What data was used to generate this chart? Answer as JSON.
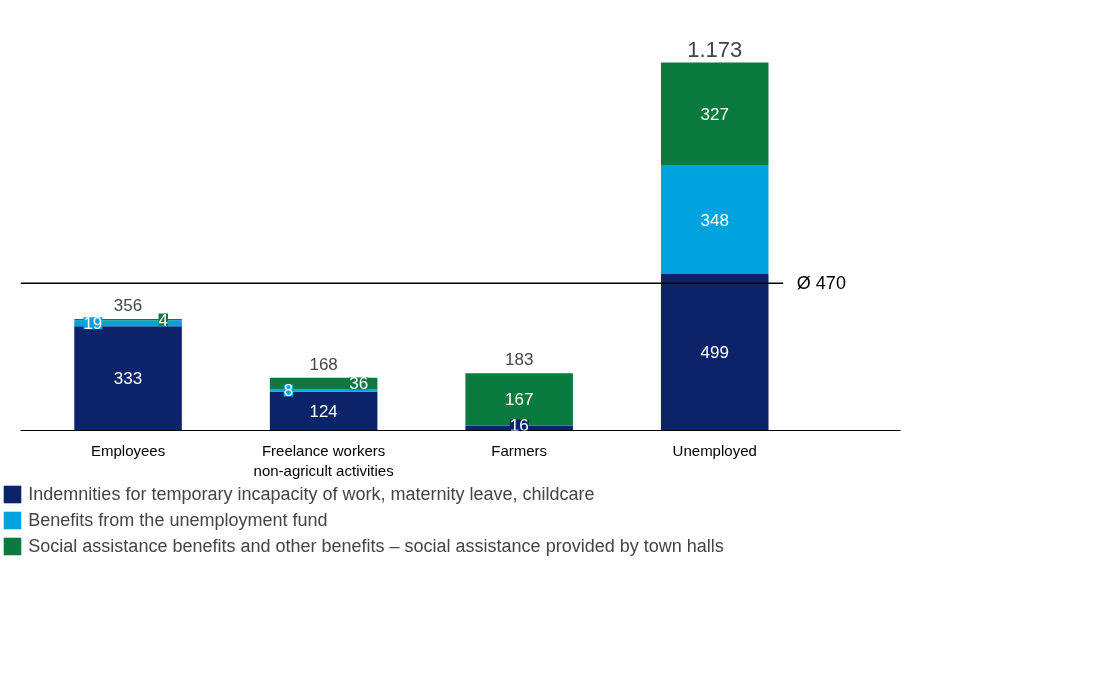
{
  "chart_data": {
    "type": "bar",
    "stacked": true,
    "categories": [
      "Employees",
      "Freelance workers\nnon-agricult activities",
      "Farmers",
      "Unemployed"
    ],
    "series": [
      {
        "name": "Indemnities for temporary incapacity of work, maternity leave, childcare",
        "color": "#0a2369",
        "values": [
          333,
          124,
          16,
          499
        ],
        "value_labels": [
          "333",
          "124",
          "16",
          "499"
        ]
      },
      {
        "name": "Benefits from the unemployment fund",
        "color": "#00a3e0",
        "values": [
          19,
          8,
          0,
          348
        ],
        "value_labels": [
          "19",
          "8",
          null,
          "348"
        ]
      },
      {
        "name": "Social assistance benefits and other benefits – social assistance provided by town halls",
        "color": "#0b7a3e",
        "values": [
          4,
          36,
          167,
          327
        ],
        "value_labels": [
          "4",
          "36",
          "167",
          "327"
        ]
      }
    ],
    "totals": [
      "356",
      "168",
      "183",
      "1.173"
    ],
    "tick_labels": "x",
    "grid": false,
    "legend": "bottom",
    "ref_lines": [
      {
        "axis": "y",
        "value": 470,
        "label": "Ø 470",
        "color": "#000000"
      }
    ]
  }
}
